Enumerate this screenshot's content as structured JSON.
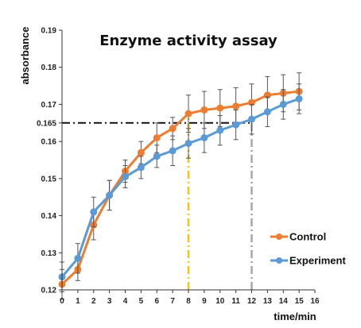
{
  "chart_data": {
    "type": "line",
    "title": "Enzyme activity assay",
    "xlabel": "time/min",
    "ylabel": "absorbance",
    "xlim": [
      0,
      16
    ],
    "ylim": [
      0.12,
      0.19
    ],
    "x_ticks": [
      0,
      1,
      2,
      3,
      4,
      5,
      6,
      7,
      8,
      9,
      10,
      11,
      12,
      13,
      14,
      15,
      16
    ],
    "y_ticks": [
      {
        "value": 0.12,
        "label": "0.12"
      },
      {
        "value": 0.13,
        "label": "0.13"
      },
      {
        "value": 0.14,
        "label": "0.14"
      },
      {
        "value": 0.15,
        "label": "0.15"
      },
      {
        "value": 0.16,
        "label": "0.16"
      },
      {
        "value": 0.165,
        "label": "0.165"
      },
      {
        "value": 0.17,
        "label": "0.17"
      },
      {
        "value": 0.18,
        "label": "0.18"
      },
      {
        "value": 0.19,
        "label": "0.19"
      }
    ],
    "x": [
      0,
      1,
      2,
      3,
      4,
      5,
      6,
      7,
      8,
      9,
      10,
      11,
      12,
      13,
      14,
      15
    ],
    "series": [
      {
        "name": "Control",
        "color": "#ED7D31",
        "values": [
          0.1215,
          0.1255,
          0.1375,
          0.1455,
          0.152,
          0.157,
          0.161,
          0.1635,
          0.1675,
          0.1685,
          0.169,
          0.1695,
          0.1705,
          0.1725,
          0.173,
          0.1735
        ],
        "errors": [
          0.004,
          0.003,
          0.004,
          0.004,
          0.003,
          0.003,
          0.004,
          0.003,
          0.005,
          0.005,
          0.005,
          0.005,
          0.005,
          0.005,
          0.005,
          0.005
        ]
      },
      {
        "name": "Experiment",
        "color": "#5B9BD5",
        "values": [
          0.1235,
          0.1285,
          0.141,
          0.1455,
          0.1505,
          0.153,
          0.156,
          0.1575,
          0.1595,
          0.161,
          0.163,
          0.1645,
          0.166,
          0.168,
          0.17,
          0.1715
        ],
        "errors": [
          0.004,
          0.004,
          0.004,
          0.004,
          0.003,
          0.003,
          0.003,
          0.004,
          0.004,
          0.004,
          0.004,
          0.004,
          0.004,
          0.004,
          0.004,
          0.004
        ]
      }
    ],
    "reference_lines": [
      {
        "orientation": "horizontal",
        "y": 0.165,
        "x_start": 0,
        "x_end": 12,
        "color": "#111111",
        "style": "dash-dot"
      },
      {
        "orientation": "vertical",
        "x": 8,
        "y_start": 0.12,
        "y_end": 0.1675,
        "color": "#F5C018",
        "style": "dash-dot"
      },
      {
        "orientation": "vertical",
        "x": 12,
        "y_start": 0.12,
        "y_end": 0.166,
        "color": "#A6A6A6",
        "style": "dash-dot"
      }
    ],
    "legend_position": "bottom-right",
    "grid": false
  }
}
